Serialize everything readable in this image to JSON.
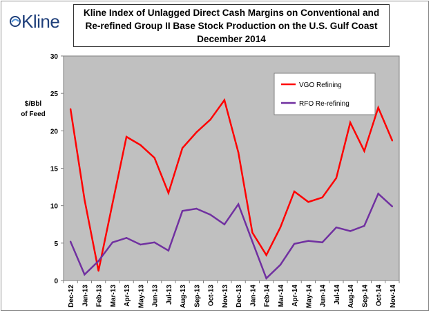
{
  "logo": {
    "text": "Kline"
  },
  "title": {
    "line1": "Kline Index of Unlagged Direct Cash Margins on Conventional and",
    "line2": "Re-refined Group II Base Stock Production on the U.S. Gulf Coast",
    "line3": "December 2014"
  },
  "colors": {
    "vgo": "#ff0000",
    "rfo": "#7030a0",
    "plot_bg": "#c0c0c0"
  },
  "chart_data": {
    "type": "line",
    "title": "Kline Index of Unlagged Direct Cash Margins on Conventional and Re-refined Group II Base Stock Production on the U.S. Gulf Coast December 2014",
    "ylabel_line1": "$/Bbl",
    "ylabel_line2": "of Feed",
    "xlabel": "",
    "ylim": [
      0,
      30
    ],
    "yticks": [
      "0",
      "5",
      "10",
      "15",
      "20",
      "25",
      "30"
    ],
    "grid": false,
    "legend_position": "top-right",
    "categories": [
      "Dec-12",
      "Jan-13",
      "Feb-13",
      "Mar-13",
      "Apr-13",
      "May-13",
      "Jun-13",
      "Jul-13",
      "Aug-13",
      "Sep-13",
      "Oct-13",
      "Nov-13",
      "Dec-13",
      "Jan-14",
      "Feb-14",
      "Mar-14",
      "Apr-14",
      "May-14",
      "Jun-14",
      "Jul-14",
      "Aug-14",
      "Sep-14",
      "Oct-14",
      "Nov-14"
    ],
    "series": [
      {
        "name": "VGO Refining",
        "values": [
          22.9,
          10.8,
          1.3,
          10.3,
          19.2,
          18.1,
          16.4,
          11.7,
          17.7,
          19.8,
          21.5,
          24.1,
          17.1,
          6.4,
          3.4,
          7.1,
          11.9,
          10.5,
          11.1,
          13.7,
          21.1,
          17.3,
          23.1,
          18.7
        ]
      },
      {
        "name": "RFO Re-refining",
        "values": [
          5.2,
          0.8,
          2.6,
          5.1,
          5.7,
          4.8,
          5.1,
          4.0,
          9.3,
          9.6,
          8.8,
          7.5,
          10.2,
          5.2,
          0.3,
          2.1,
          4.9,
          5.3,
          5.1,
          7.1,
          6.6,
          7.3,
          11.6,
          9.9
        ]
      }
    ]
  }
}
